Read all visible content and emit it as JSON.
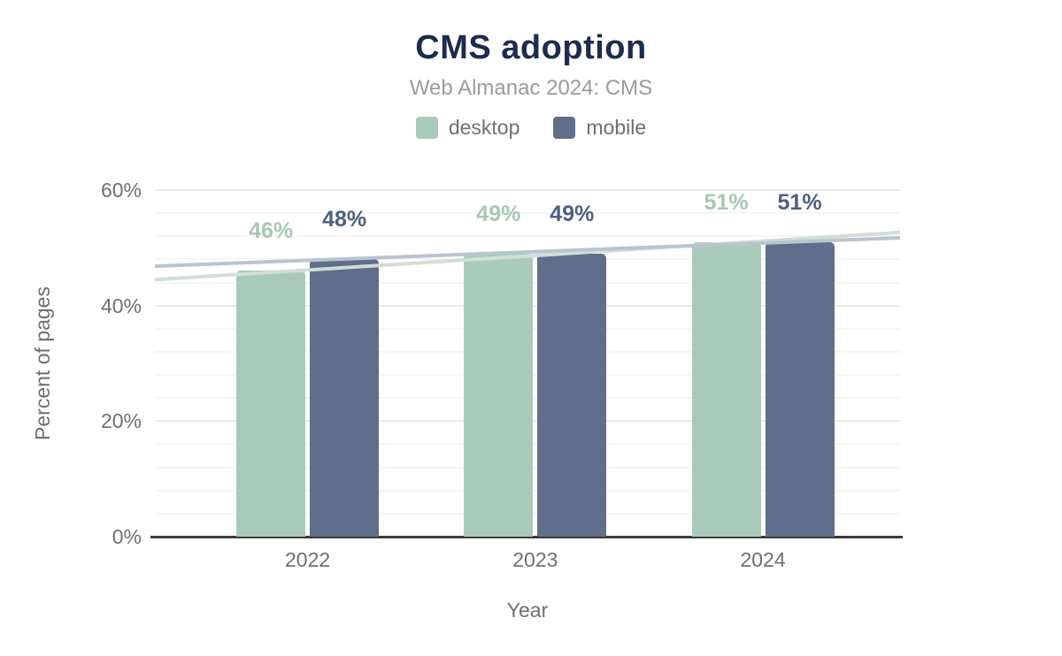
{
  "header": {
    "title": "CMS adoption",
    "subtitle": "Web Almanac 2024: CMS"
  },
  "chart_data": {
    "type": "bar",
    "title": "CMS adoption",
    "subtitle": "Web Almanac 2024: CMS",
    "categories": [
      "2022",
      "2023",
      "2024"
    ],
    "series": [
      {
        "name": "desktop",
        "values": [
          46,
          49,
          51
        ],
        "bar_color": "#a9cabb",
        "trend_color": "#cfdfd5",
        "value_label_color": "#a5c8b6"
      },
      {
        "name": "mobile",
        "values": [
          48,
          49,
          51
        ],
        "bar_color": "#5f6e8a",
        "trend_color": "#b9c4d2",
        "value_label_color": "#4d6080"
      }
    ],
    "value_label_suffix": "%",
    "xlabel": "Year",
    "ylabel": "Percent of pages",
    "ylim": [
      0,
      60
    ],
    "yticks": [
      0,
      20,
      40,
      60
    ],
    "ytick_labels": [
      "0%",
      "20%",
      "40%",
      "60%"
    ],
    "minor_gridline_step": 4,
    "grid": true,
    "legend_position": "top",
    "trendlines": true,
    "colors": {
      "title": "#1c2c4e",
      "subtitle": "#9b9b9b",
      "axis_text": "#6f6f6f",
      "axis_line": "#3b3b3b",
      "gridline_major": "#ebebeb",
      "gridline_minor": "#f5f5f5",
      "background": "#ffffff"
    }
  }
}
